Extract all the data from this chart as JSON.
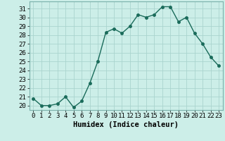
{
  "title": "",
  "xlabel": "Humidex (Indice chaleur)",
  "x": [
    0,
    1,
    2,
    3,
    4,
    5,
    6,
    7,
    8,
    9,
    10,
    11,
    12,
    13,
    14,
    15,
    16,
    17,
    18,
    19,
    20,
    21,
    22,
    23
  ],
  "y": [
    20.8,
    20.0,
    20.0,
    20.2,
    21.0,
    19.8,
    20.5,
    22.5,
    25.0,
    28.3,
    28.7,
    28.2,
    29.0,
    30.3,
    30.0,
    30.3,
    31.2,
    31.2,
    29.5,
    30.0,
    28.2,
    27.0,
    25.5,
    24.5
  ],
  "line_color": "#1a6b5a",
  "marker": "o",
  "marker_size": 2.5,
  "bg_color": "#cceee8",
  "grid_color": "#aad4ce",
  "ylim": [
    19.5,
    31.8
  ],
  "yticks": [
    20,
    21,
    22,
    23,
    24,
    25,
    26,
    27,
    28,
    29,
    30,
    31
  ],
  "xticks": [
    0,
    1,
    2,
    3,
    4,
    5,
    6,
    7,
    8,
    9,
    10,
    11,
    12,
    13,
    14,
    15,
    16,
    17,
    18,
    19,
    20,
    21,
    22,
    23
  ],
  "tick_fontsize": 6.5,
  "label_fontsize": 7.5,
  "line_width": 1.0
}
